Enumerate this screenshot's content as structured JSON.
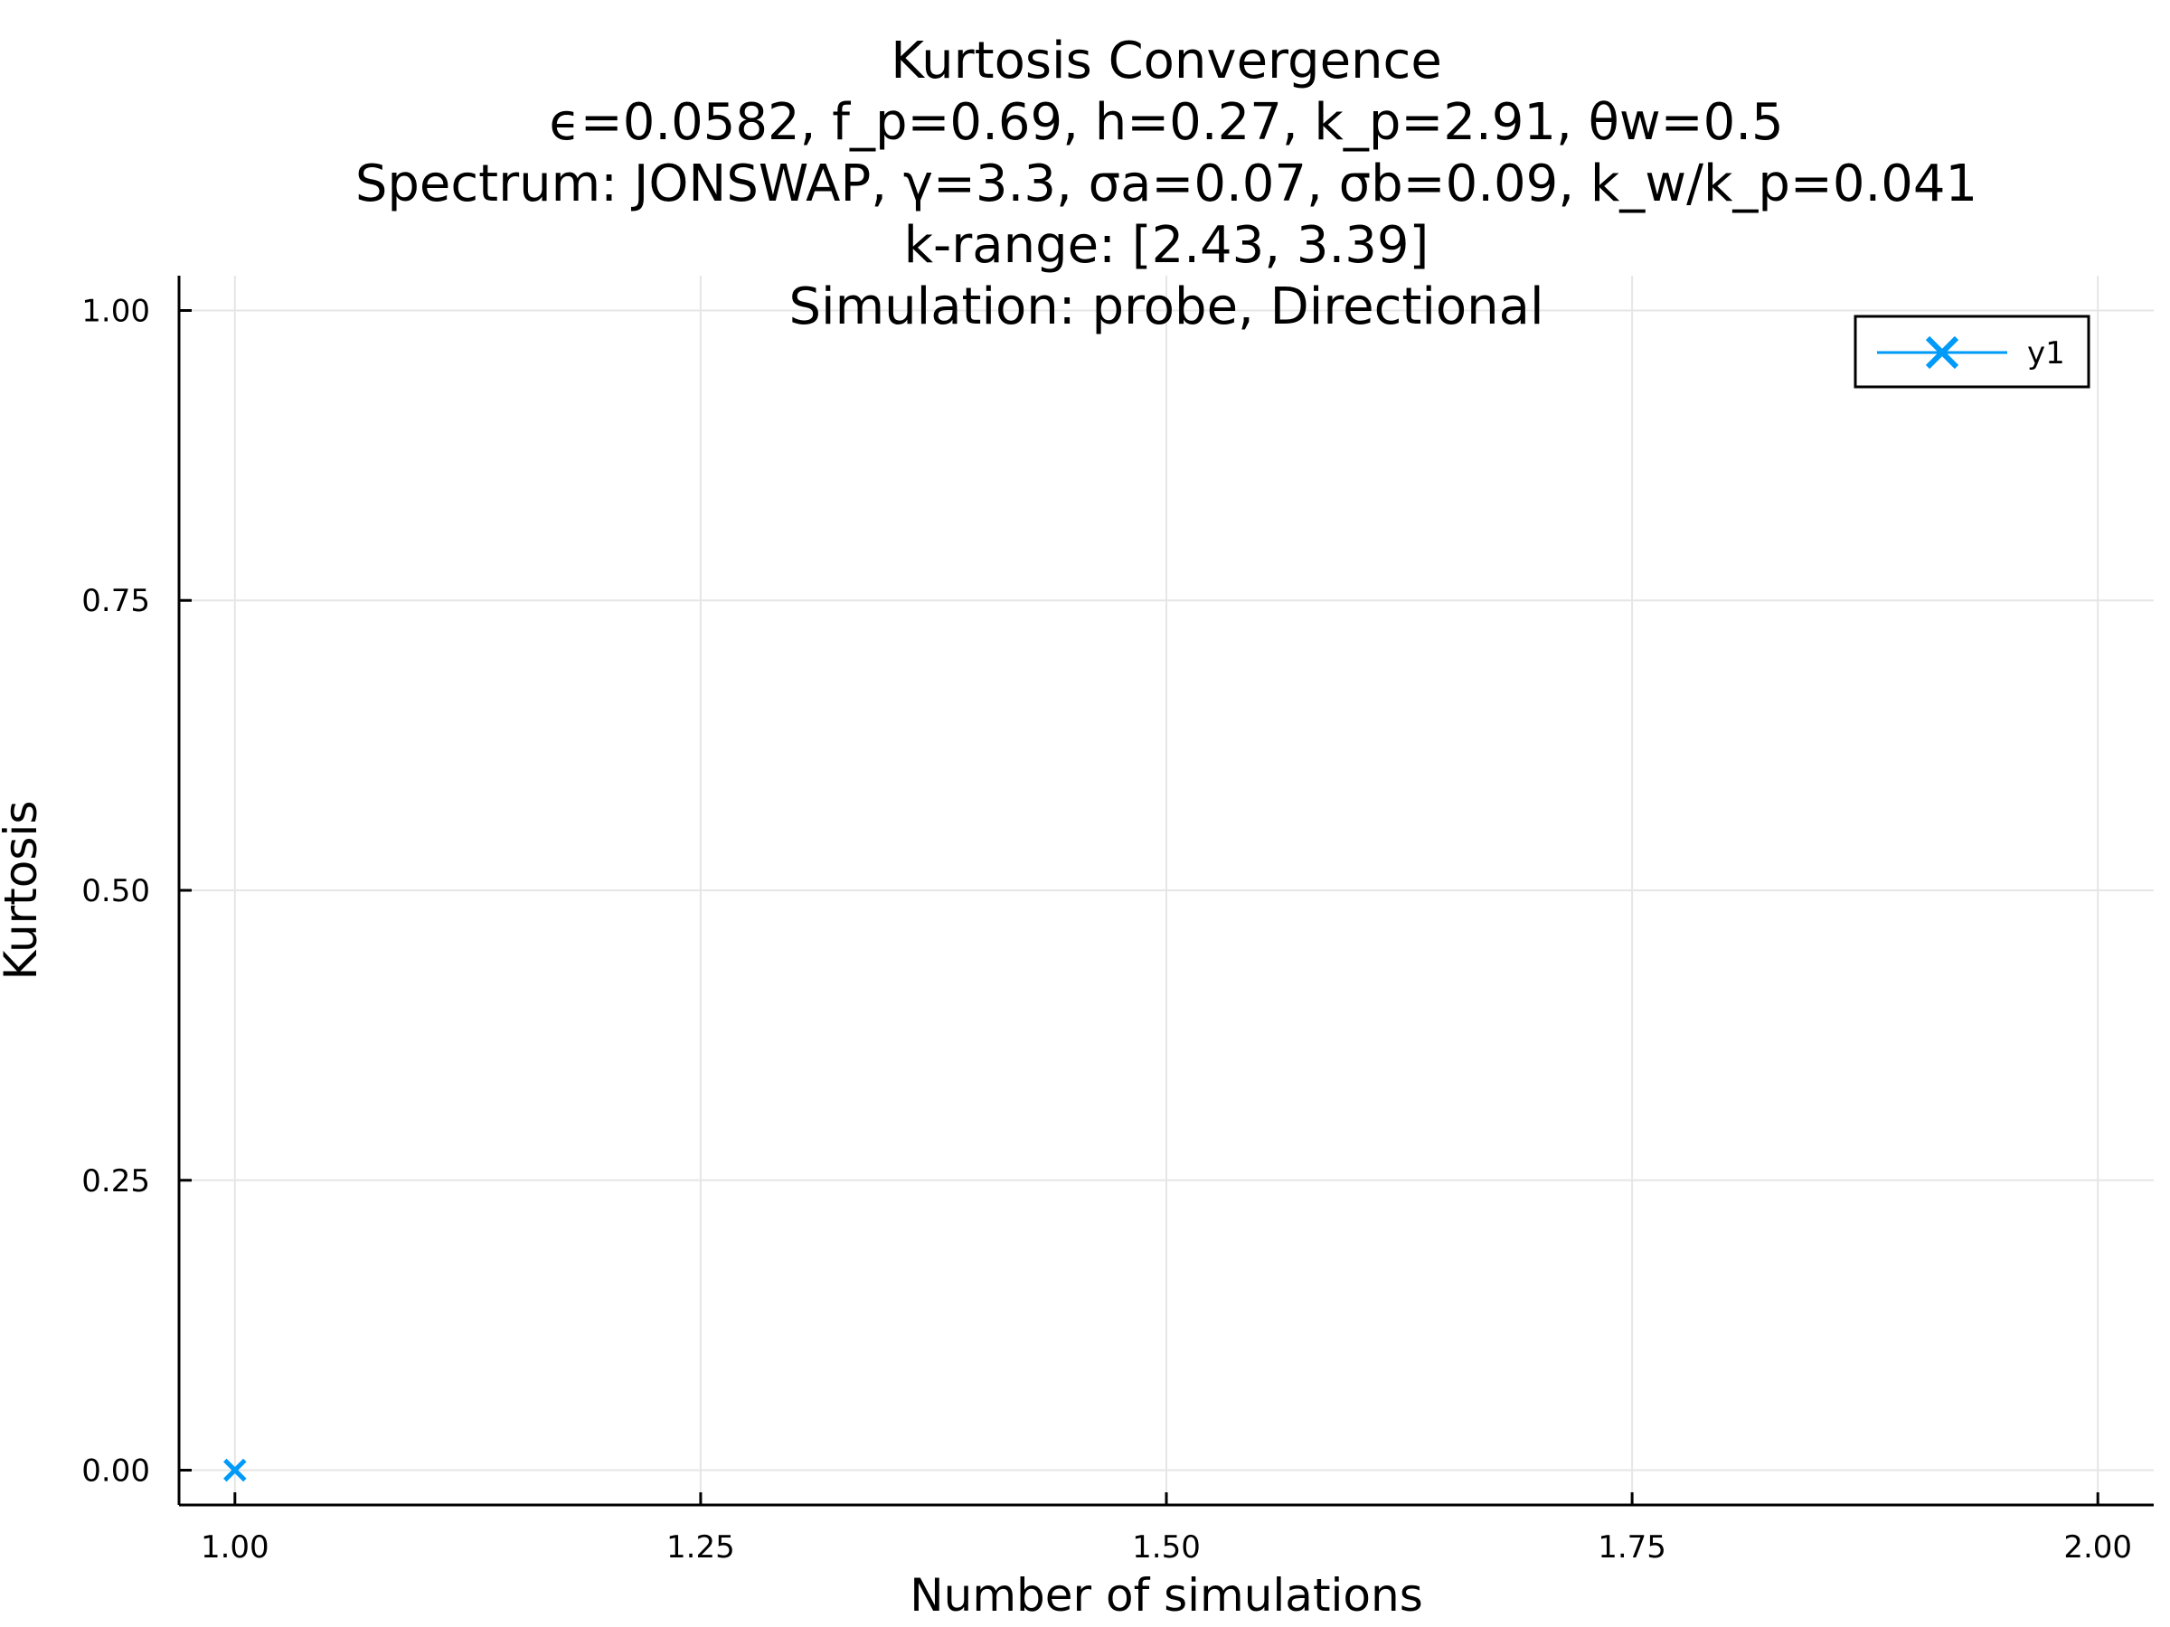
{
  "chart_data": {
    "type": "scatter",
    "title_lines": [
      "Kurtosis Convergence",
      "ϵ=0.0582, f_p=0.69, h=0.27, k_p=2.91, θw=0.5",
      "Spectrum: JONSWAP, γ=3.3, σa=0.07, σb=0.09, k_w/k_p=0.041",
      "k-range: [2.43, 3.39]",
      "Simulation: probe, Directional"
    ],
    "xlabel": "Number of simulations",
    "ylabel": "Kurtosis",
    "xlim": [
      0.97,
      2.03
    ],
    "ylim": [
      -0.03,
      1.03
    ],
    "x_ticks": [
      1.0,
      1.25,
      1.5,
      1.75,
      2.0
    ],
    "x_tick_labels": [
      "1.00",
      "1.25",
      "1.50",
      "1.75",
      "2.00"
    ],
    "y_ticks": [
      0.0,
      0.25,
      0.5,
      0.75,
      1.0
    ],
    "y_tick_labels": [
      "0.00",
      "0.25",
      "0.50",
      "0.75",
      "1.00"
    ],
    "grid": true,
    "legend_position": "top-right",
    "series": [
      {
        "name": "y1",
        "color": "#009af9",
        "marker": "x",
        "points": [
          {
            "x": 1,
            "y": 0
          }
        ]
      }
    ]
  }
}
